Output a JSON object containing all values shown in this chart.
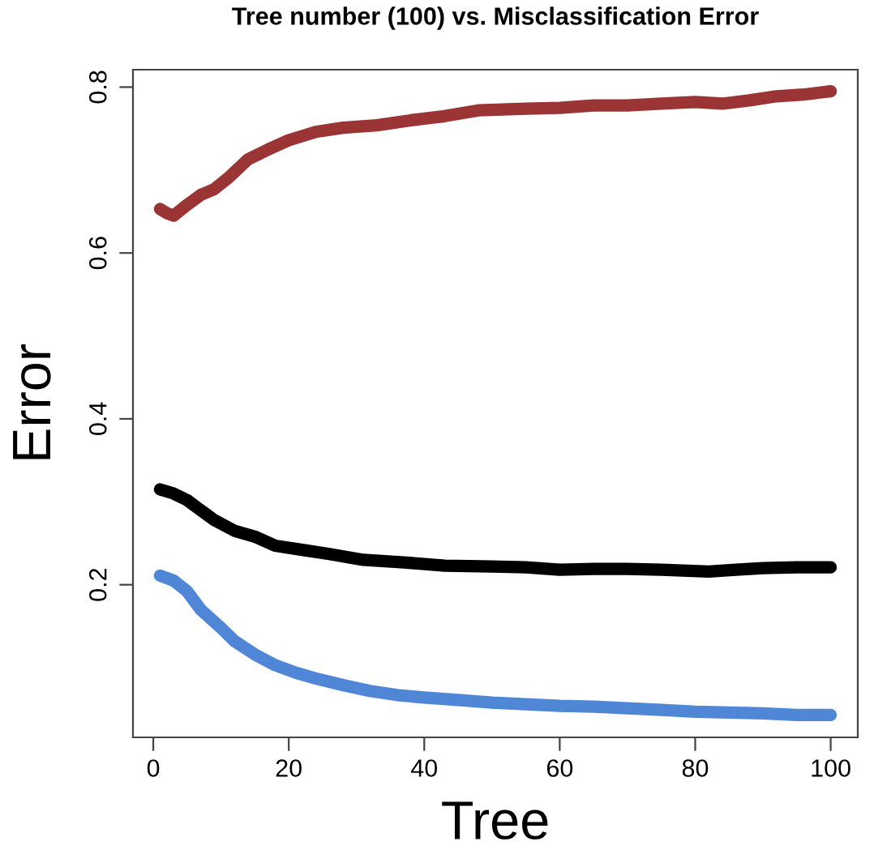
{
  "chart_data": {
    "type": "line",
    "title": "Tree number (100) vs. Misclassification Error",
    "xlabel": "Tree",
    "ylabel": "Error",
    "xlim": [
      -3,
      104
    ],
    "ylim": [
      0.016,
      0.821
    ],
    "xticks": [
      0,
      20,
      40,
      60,
      80,
      100
    ],
    "yticks": [
      0.2,
      0.4,
      0.6,
      0.8
    ],
    "grid": false,
    "legend": false,
    "marker": "none",
    "line_style": "solid",
    "series": [
      {
        "color": "#9b3434",
        "x": [
          1,
          2,
          3,
          5,
          7,
          9,
          11,
          14,
          17,
          20,
          24,
          28,
          33,
          38,
          43,
          48,
          55,
          60,
          65,
          70,
          75,
          80,
          84,
          88,
          92,
          96,
          100
        ],
        "values": [
          0.653,
          0.648,
          0.645,
          0.658,
          0.67,
          0.677,
          0.69,
          0.713,
          0.725,
          0.736,
          0.746,
          0.751,
          0.754,
          0.76,
          0.765,
          0.772,
          0.774,
          0.775,
          0.778,
          0.778,
          0.78,
          0.782,
          0.78,
          0.784,
          0.789,
          0.791,
          0.795
        ]
      },
      {
        "color": "#000000",
        "x": [
          1,
          3,
          5,
          7,
          9,
          12,
          15,
          18,
          22,
          26,
          31,
          37,
          43,
          50,
          55,
          60,
          65,
          70,
          75,
          82,
          86,
          90,
          95,
          100
        ],
        "values": [
          0.315,
          0.31,
          0.302,
          0.29,
          0.278,
          0.265,
          0.258,
          0.247,
          0.242,
          0.237,
          0.23,
          0.227,
          0.223,
          0.222,
          0.221,
          0.218,
          0.219,
          0.219,
          0.218,
          0.216,
          0.218,
          0.22,
          0.221,
          0.221
        ]
      },
      {
        "color": "#4f86d6",
        "x": [
          1,
          3,
          5,
          7,
          10,
          12,
          15,
          18,
          21,
          24,
          28,
          32,
          36,
          40,
          45,
          50,
          55,
          60,
          65,
          70,
          75,
          80,
          85,
          90,
          95,
          100
        ],
        "values": [
          0.211,
          0.205,
          0.192,
          0.17,
          0.148,
          0.132,
          0.116,
          0.103,
          0.094,
          0.087,
          0.079,
          0.072,
          0.067,
          0.064,
          0.061,
          0.058,
          0.056,
          0.054,
          0.053,
          0.051,
          0.049,
          0.047,
          0.046,
          0.045,
          0.043,
          0.043
        ]
      }
    ]
  }
}
